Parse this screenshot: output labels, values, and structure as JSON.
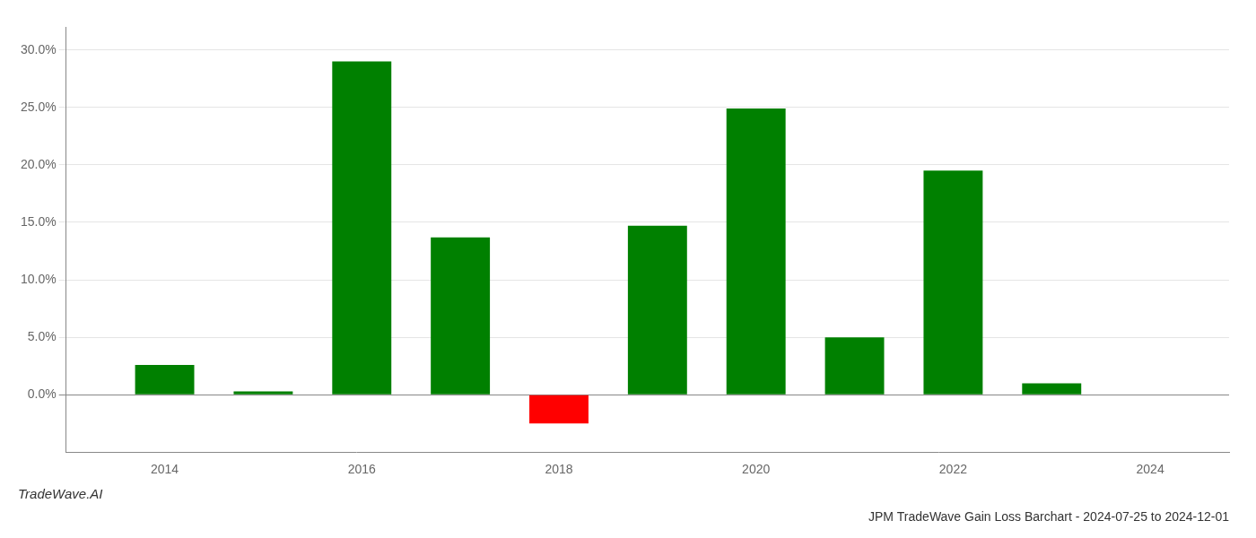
{
  "chart_data": {
    "type": "bar",
    "title": "JPM TradeWave Gain Loss Barchart - 2024-07-25 to 2024-12-01",
    "annotations": [
      "TradeWave.AI"
    ],
    "x": [
      2014,
      2015,
      2016,
      2017,
      2018,
      2019,
      2020,
      2021,
      2022,
      2023
    ],
    "values": [
      0.026,
      0.003,
      0.29,
      0.137,
      -0.025,
      0.147,
      0.249,
      0.05,
      0.195,
      0.01
    ],
    "colors": [
      "#008000",
      "#008000",
      "#008000",
      "#008000",
      "#ff0000",
      "#008000",
      "#008000",
      "#008000",
      "#008000",
      "#008000"
    ],
    "xlim": [
      2013.0,
      2024.8
    ],
    "xticks": [
      2014,
      2016,
      2018,
      2020,
      2022,
      2024
    ],
    "ylim": [
      -0.05,
      0.32
    ],
    "yticks": [
      {
        "value": 0.0,
        "label": "0.0%"
      },
      {
        "value": 0.05,
        "label": "5.0%"
      },
      {
        "value": 0.1,
        "label": "10.0%"
      },
      {
        "value": 0.15,
        "label": "15.0%"
      },
      {
        "value": 0.2,
        "label": "20.0%"
      },
      {
        "value": 0.25,
        "label": "25.0%"
      },
      {
        "value": 0.3,
        "label": "30.0%"
      }
    ],
    "grid": "y"
  }
}
